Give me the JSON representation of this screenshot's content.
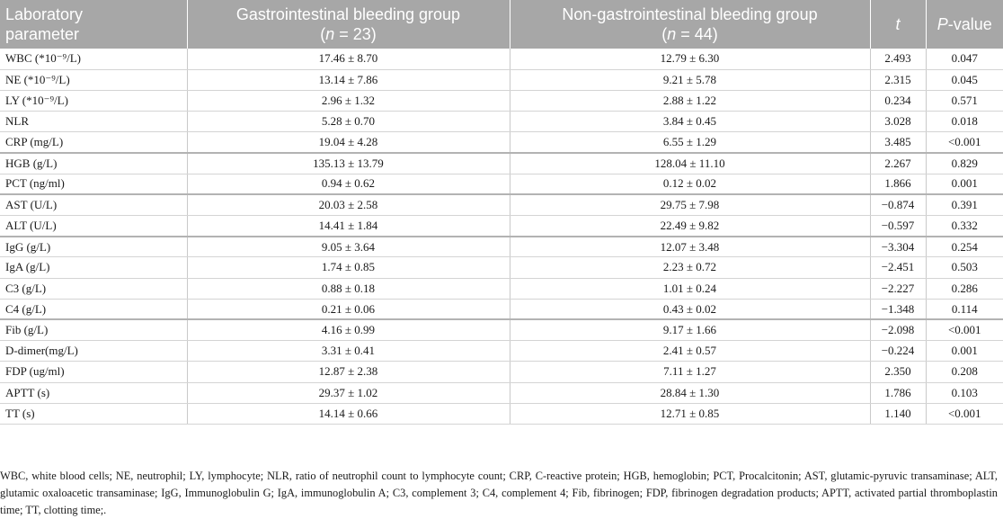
{
  "table": {
    "headers": {
      "param_line1": "Laboratory",
      "param_line2": "parameter",
      "gi_line1": "Gastrointestinal bleeding group",
      "gi_n_prefix": "(",
      "gi_n_var": "n",
      "gi_n_suffix": " = 23)",
      "non_gi_line1": "Non-gastrointestinal bleeding group",
      "non_gi_n_prefix": "(",
      "non_gi_n_var": "n",
      "non_gi_n_suffix": " = 44)",
      "t": "t",
      "p_italic": "P",
      "p_suffix": "-value"
    },
    "rows": [
      {
        "param": "WBC (*10⁻⁹/L)",
        "gi": "17.46 ± 8.70",
        "non_gi": "12.79 ± 6.30",
        "t": "2.493",
        "p": "0.047"
      },
      {
        "param": "NE (*10⁻⁹/L)",
        "gi": "13.14 ± 7.86",
        "non_gi": "9.21 ± 5.78",
        "t": "2.315",
        "p": "0.045"
      },
      {
        "param": "LY (*10⁻⁹/L)",
        "gi": "2.96 ± 1.32",
        "non_gi": "2.88 ± 1.22",
        "t": "0.234",
        "p": "0.571"
      },
      {
        "param": "NLR",
        "gi": "5.28 ± 0.70",
        "non_gi": "3.84 ± 0.45",
        "t": "3.028",
        "p": "0.018"
      },
      {
        "param": "CRP (mg/L)",
        "gi": "19.04 ± 4.28",
        "non_gi": "6.55 ± 1.29",
        "t": "3.485",
        "p": "<0.001"
      },
      {
        "param": "HGB (g/L)",
        "gi": "135.13 ± 13.79",
        "non_gi": "128.04 ± 11.10",
        "t": "2.267",
        "p": "0.829"
      },
      {
        "param": "PCT (ng/ml)",
        "gi": "0.94 ± 0.62",
        "non_gi": "0.12 ± 0.02",
        "t": "1.866",
        "p": "0.001"
      },
      {
        "param": "AST (U/L)",
        "gi": "20.03 ± 2.58",
        "non_gi": "29.75 ± 7.98",
        "t": "−0.874",
        "p": "0.391"
      },
      {
        "param": "ALT (U/L)",
        "gi": "14.41 ± 1.84",
        "non_gi": "22.49 ± 9.82",
        "t": "−0.597",
        "p": "0.332"
      },
      {
        "param": "IgG (g/L)",
        "gi": "9.05 ± 3.64",
        "non_gi": "12.07 ± 3.48",
        "t": "−3.304",
        "p": "0.254"
      },
      {
        "param": "IgA (g/L)",
        "gi": "1.74 ± 0.85",
        "non_gi": "2.23 ± 0.72",
        "t": "−2.451",
        "p": "0.503"
      },
      {
        "param": "C3 (g/L)",
        "gi": "0.88 ± 0.18",
        "non_gi": "1.01 ± 0.24",
        "t": "−2.227",
        "p": "0.286"
      },
      {
        "param": "C4 (g/L)",
        "gi": "0.21 ± 0.06",
        "non_gi": "0.43 ± 0.02",
        "t": "−1.348",
        "p": "0.114"
      },
      {
        "param": "Fib (g/L)",
        "gi": "4.16 ± 0.99",
        "non_gi": "9.17 ± 1.66",
        "t": "−2.098",
        "p": "<0.001"
      },
      {
        "param": "D-dimer(mg/L)",
        "gi": "3.31 ± 0.41",
        "non_gi": "2.41 ± 0.57",
        "t": "−0.224",
        "p": "0.001"
      },
      {
        "param": "FDP (ug/ml)",
        "gi": "12.87 ± 2.38",
        "non_gi": "7.11 ± 1.27",
        "t": "2.350",
        "p": "0.208"
      },
      {
        "param": "APTT (s)",
        "gi": "29.37 ± 1.02",
        "non_gi": "28.84 ± 1.30",
        "t": "1.786",
        "p": "0.103"
      },
      {
        "param": "TT (s)",
        "gi": "14.14 ± 0.66",
        "non_gi": "12.71 ± 0.85",
        "t": "1.140",
        "p": "<0.001"
      }
    ]
  },
  "footnote": "WBC, white blood cells; NE, neutrophil; LY, lymphocyte; NLR, ratio of neutrophil count to lymphocyte count; CRP, C-reactive protein; HGB, hemoglobin; PCT, Procalcitonin; AST, glutamic-pyruvic transaminase; ALT, glutamic oxaloacetic transaminase; IgG, Immunoglobulin G; IgA, immunoglobulin A; C3, complement 3; C4, complement 4; Fib, fibrinogen; FDP, fibrinogen degradation products; APTT, activated partial thromboplastin time; TT, clotting time;."
}
